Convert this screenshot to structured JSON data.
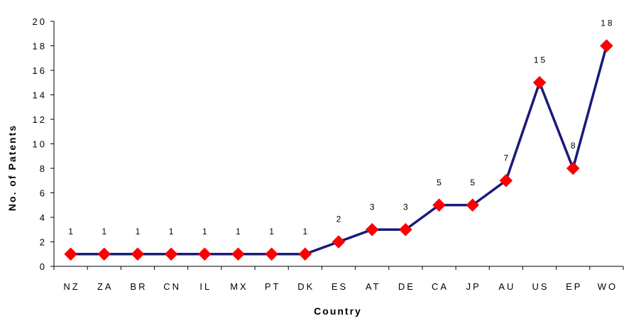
{
  "chart_data": {
    "type": "line",
    "categories": [
      "NZ",
      "ZA",
      "BR",
      "CN",
      "IL",
      "MX",
      "PT",
      "DK",
      "ES",
      "AT",
      "DE",
      "CA",
      "JP",
      "AU",
      "US",
      "EP",
      "WO"
    ],
    "values": [
      1,
      1,
      1,
      1,
      1,
      1,
      1,
      1,
      2,
      3,
      3,
      5,
      5,
      7,
      15,
      8,
      18
    ],
    "data_labels": [
      "1",
      "1",
      "1",
      "1",
      "1",
      "1",
      "1",
      "1",
      "2",
      "3",
      "3",
      "5",
      "5",
      "7",
      "15",
      "8",
      "18"
    ],
    "xlabel": "Country",
    "ylabel": "No. of Patents",
    "ylim": [
      0,
      20
    ],
    "yticks": [
      "0",
      "2",
      "4",
      "6",
      "8",
      "10",
      "12",
      "14",
      "16",
      "18",
      "20"
    ],
    "grid": false,
    "legend": "none",
    "line_color": "#1a1a7a",
    "marker_color": "#ff0000",
    "marker": "diamond"
  }
}
